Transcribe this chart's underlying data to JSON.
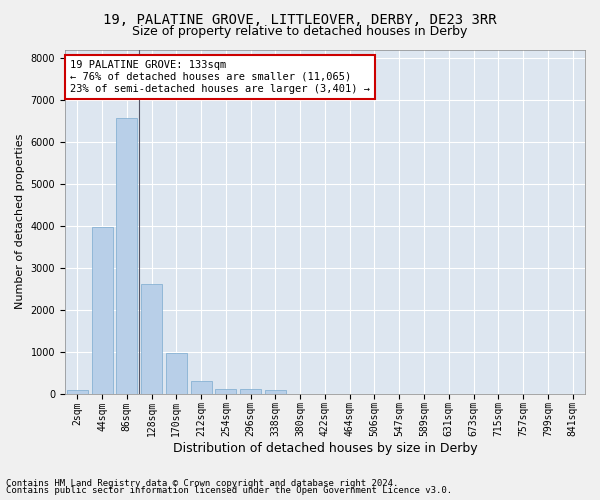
{
  "title1": "19, PALATINE GROVE, LITTLEOVER, DERBY, DE23 3RR",
  "title2": "Size of property relative to detached houses in Derby",
  "xlabel": "Distribution of detached houses by size in Derby",
  "ylabel": "Number of detached properties",
  "categories": [
    "2sqm",
    "44sqm",
    "86sqm",
    "128sqm",
    "170sqm",
    "212sqm",
    "254sqm",
    "296sqm",
    "338sqm",
    "380sqm",
    "422sqm",
    "464sqm",
    "506sqm",
    "547sqm",
    "589sqm",
    "631sqm",
    "673sqm",
    "715sqm",
    "757sqm",
    "799sqm",
    "841sqm"
  ],
  "values": [
    75,
    3980,
    6580,
    2620,
    960,
    310,
    120,
    100,
    80,
    0,
    0,
    0,
    0,
    0,
    0,
    0,
    0,
    0,
    0,
    0,
    0
  ],
  "bar_color": "#b8cfe8",
  "bar_edge_color": "#7aaacf",
  "annotation_title": "19 PALATINE GROVE: 133sqm",
  "annotation_line1": "← 76% of detached houses are smaller (11,065)",
  "annotation_line2": "23% of semi-detached houses are larger (3,401) →",
  "annotation_box_color": "#ffffff",
  "annotation_border_color": "#cc0000",
  "vline_color": "#555566",
  "ylim": [
    0,
    8200
  ],
  "yticks": [
    0,
    1000,
    2000,
    3000,
    4000,
    5000,
    6000,
    7000,
    8000
  ],
  "background_color": "#dde6f0",
  "plot_bg_color": "#dde6f0",
  "fig_bg_color": "#f0f0f0",
  "grid_color": "#ffffff",
  "footer1": "Contains HM Land Registry data © Crown copyright and database right 2024.",
  "footer2": "Contains public sector information licensed under the Open Government Licence v3.0.",
  "title1_fontsize": 10,
  "title2_fontsize": 9,
  "xlabel_fontsize": 9,
  "ylabel_fontsize": 8,
  "tick_fontsize": 7,
  "footer_fontsize": 6.5,
  "annotation_fontsize": 7.5
}
